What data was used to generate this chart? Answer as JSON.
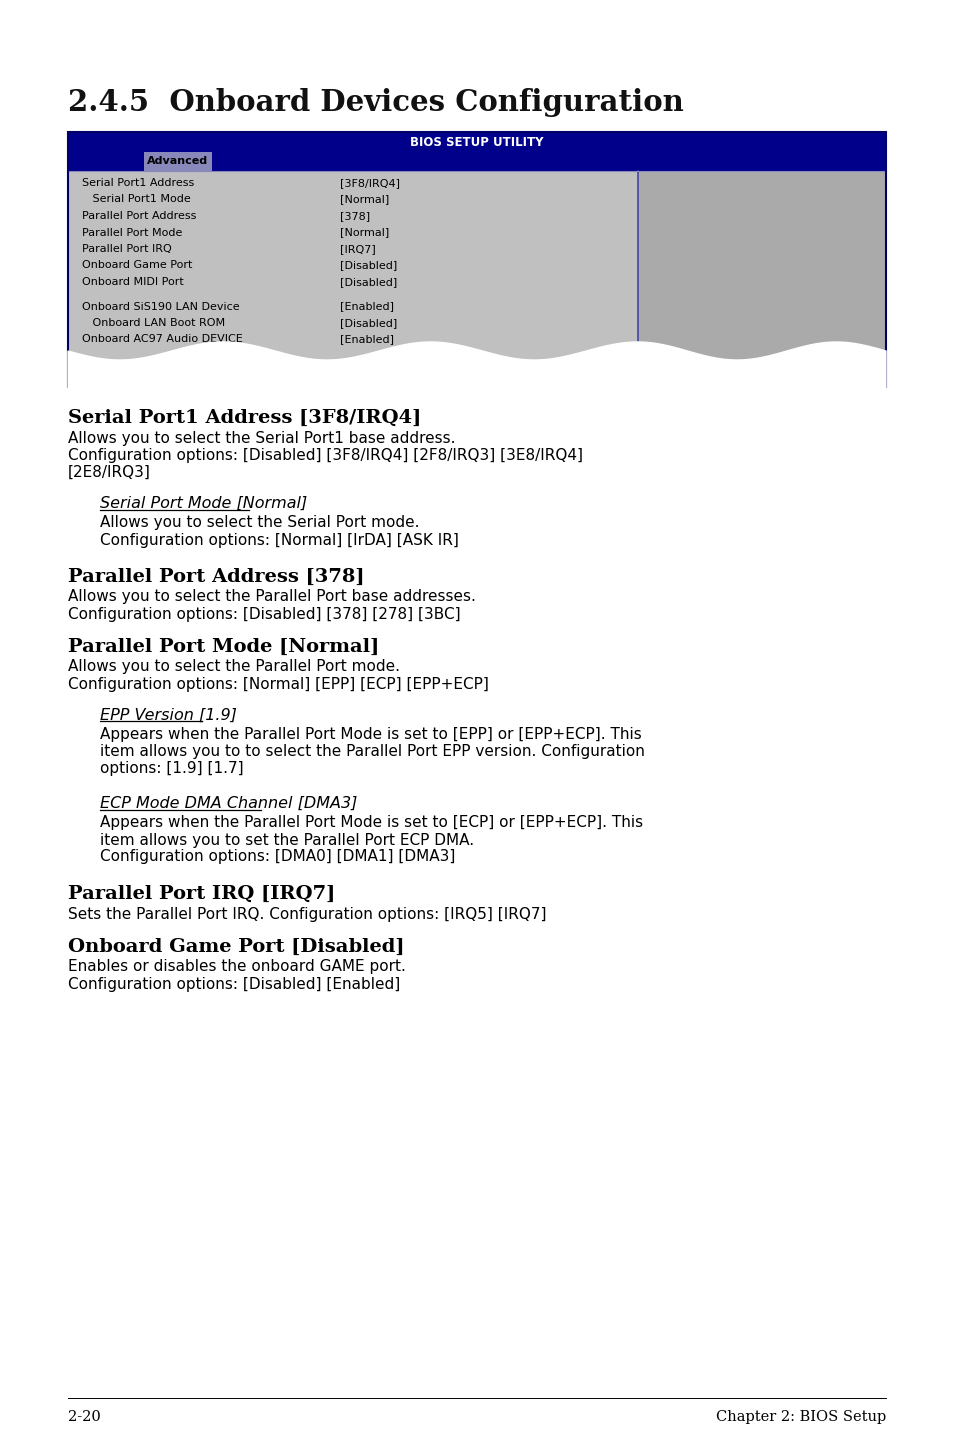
{
  "page_bg": "#ffffff",
  "title": "2.4.5  Onboard Devices Configuration",
  "title_fontsize": 21,
  "bios_header_bg": "#00008B",
  "bios_header_text": "BIOS SETUP UTILITY",
  "bios_tab_text": "Advanced",
  "bios_tab_bg": "#8888BB",
  "bios_content_bg": "#C0C0C0",
  "bios_right_bg": "#AAAAAA",
  "bios_border": "#000066",
  "bios_rows": [
    [
      "Serial Port1 Address",
      "[3F8/IRQ4]"
    ],
    [
      "   Serial Port1 Mode",
      "[Normal]"
    ],
    [
      "Parallel Port Address",
      "[378]"
    ],
    [
      "Parallel Port Mode",
      "[Normal]"
    ],
    [
      "Parallel Port IRQ",
      "[IRQ7]"
    ],
    [
      "Onboard Game Port",
      "[Disabled]"
    ],
    [
      "Onboard MIDI Port",
      "[Disabled]"
    ]
  ],
  "bios_rows2": [
    [
      "Onboard SiS190 LAN Device",
      "[Enabled]"
    ],
    [
      "   Onboard LAN Boot ROM",
      "[Disabled]"
    ],
    [
      "Onboard AC97 Audio DEVICE",
      "[Enabled]"
    ]
  ],
  "sections": [
    {
      "heading": "Serial Port1 Address [3F8/IRQ4]",
      "bold": true,
      "italic": false,
      "underline": false,
      "indent": false,
      "body": [
        "Allows you to select the Serial Port1 base address.",
        "Configuration options: [Disabled] [3F8/IRQ4] [2F8/IRQ3] [3E8/IRQ4]",
        "[2E8/IRQ3]"
      ]
    },
    {
      "heading": "Serial Port Mode [Normal]",
      "bold": false,
      "italic": true,
      "underline": true,
      "indent": true,
      "body": [
        "Allows you to select the Serial Port mode.",
        "Configuration options: [Normal] [IrDA] [ASK IR]"
      ]
    },
    {
      "heading": "Parallel Port Address [378]",
      "bold": true,
      "italic": false,
      "underline": false,
      "indent": false,
      "body": [
        "Allows you to select the Parallel Port base addresses.",
        "Configuration options: [Disabled] [378] [278] [3BC]"
      ]
    },
    {
      "heading": "Parallel Port Mode [Normal]",
      "bold": true,
      "italic": false,
      "underline": false,
      "indent": false,
      "body": [
        "Allows you to select the Parallel Port mode.",
        "Configuration options: [Normal] [EPP] [ECP] [EPP+ECP]"
      ]
    },
    {
      "heading": "EPP Version [1.9]",
      "bold": false,
      "italic": true,
      "underline": true,
      "indent": true,
      "body": [
        "Appears when the Parallel Port Mode is set to [EPP] or [EPP+ECP]. This",
        "item allows you to to select the Parallel Port EPP version. Configuration",
        "options: [1.9] [1.7]"
      ]
    },
    {
      "heading": "ECP Mode DMA Channel [DMA3]",
      "bold": false,
      "italic": true,
      "underline": true,
      "indent": true,
      "body": [
        "Appears when the Parallel Port Mode is set to [ECP] or [EPP+ECP]. This",
        "item allows you to set the Parallel Port ECP DMA.",
        "Configuration options: [DMA0] [DMA1] [DMA3]"
      ]
    },
    {
      "heading": "Parallel Port IRQ [IRQ7]",
      "bold": true,
      "italic": false,
      "underline": false,
      "indent": false,
      "body": [
        "Sets the Parallel Port IRQ. Configuration options: [IRQ5] [IRQ7]"
      ]
    },
    {
      "heading": "Onboard Game Port [Disabled]",
      "bold": true,
      "italic": false,
      "underline": false,
      "indent": false,
      "body": [
        "Enables or disables the onboard GAME port.",
        "Configuration options: [Disabled] [Enabled]"
      ]
    }
  ],
  "footer_left": "2-20",
  "footer_right": "Chapter 2: BIOS Setup"
}
